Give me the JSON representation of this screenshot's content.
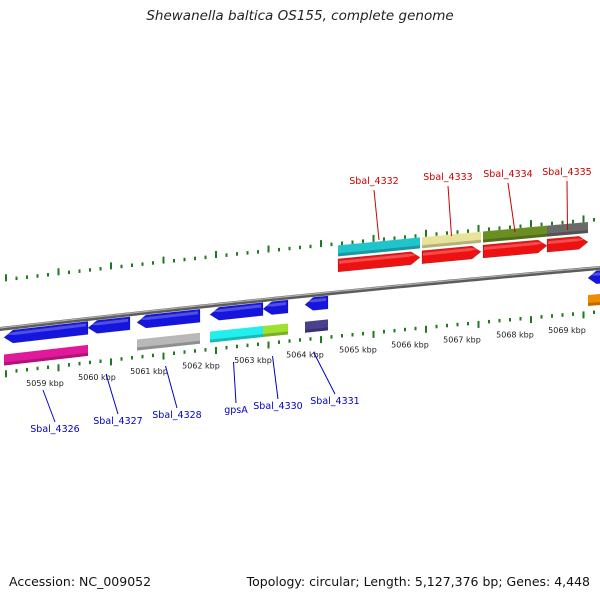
{
  "title": "Shewanella baltica OS155, complete genome",
  "footer": {
    "accession": "Accession: NC_009052",
    "summary": "Topology: circular; Length: 5,127,376 bp; Genes: 4,448"
  },
  "colors": {
    "backbone": "#7a7a7a",
    "tick": "#1f7a1f",
    "label_top": "#cc0000",
    "label_bottom": "#0000cc",
    "scale_label": "#222222"
  },
  "scale": {
    "unit": "kbp",
    "labels": [
      "5059 kbp",
      "5060 kbp",
      "5061 kbp",
      "5062 kbp",
      "5063 kbp",
      "5064 kbp",
      "5065 kbp",
      "5066 kbp",
      "5067 kbp",
      "5068 kbp",
      "5069 kbp"
    ]
  },
  "genes": [
    {
      "label": "Sbal_4326",
      "strand": "-",
      "label_side": "bottom",
      "cds_color": "#1515dd",
      "product_color": "#e0189a"
    },
    {
      "label": "Sbal_4327",
      "strand": "-",
      "label_side": "bottom",
      "cds_color": "#1515dd",
      "product_color": ""
    },
    {
      "label": "Sbal_4328",
      "strand": "-",
      "label_side": "bottom",
      "cds_color": "#1515dd",
      "product_color": "#b8b8b8"
    },
    {
      "label": "gpsA",
      "strand": "-",
      "label_side": "bottom",
      "cds_color": "#1515dd",
      "product_color": "#22eeee"
    },
    {
      "label": "Sbal_4330",
      "strand": "-",
      "label_side": "bottom",
      "cds_color": "#1515dd",
      "product_color": "#9fe030"
    },
    {
      "label": "Sbal_4331",
      "strand": "-",
      "label_side": "bottom",
      "cds_color": "#1515dd",
      "product_color": "#4b3f8f"
    },
    {
      "label": "Sbal_4332",
      "strand": "+",
      "label_side": "top",
      "cds_color": "#ee1111",
      "product_color": "#20c4cc"
    },
    {
      "label": "Sbal_4333",
      "strand": "+",
      "label_side": "top",
      "cds_color": "#ee1111",
      "product_color": "#e8e39a"
    },
    {
      "label": "Sbal_4334",
      "strand": "+",
      "label_side": "top",
      "cds_color": "#ee1111",
      "product_color": "#6b8e23"
    },
    {
      "label": "Sbal_4335",
      "strand": "+",
      "label_side": "top",
      "cds_color": "#ee1111",
      "product_color": "#6a6a6a"
    },
    {
      "label": "",
      "strand": "-",
      "label_side": "none",
      "cds_color": "#1515dd",
      "product_color": "#f08c00"
    }
  ]
}
